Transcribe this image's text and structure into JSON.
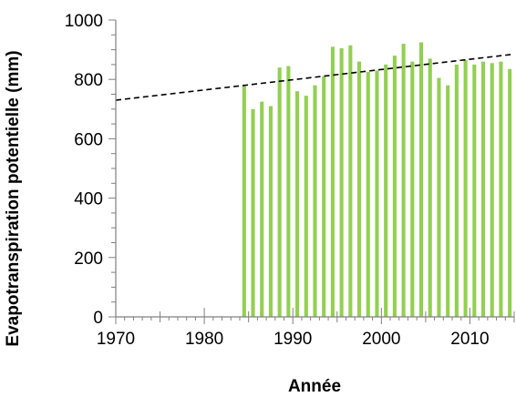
{
  "chart_data": {
    "type": "bar",
    "title": "",
    "xlabel": "Année",
    "ylabel": "Evapotranspiration potentielle (mm)",
    "xlim": [
      1970,
      2015
    ],
    "ylim": [
      0,
      1000
    ],
    "x_ticks": [
      "1970",
      "1980",
      "1990",
      "2000",
      "2010"
    ],
    "y_ticks": [
      "0",
      "200",
      "400",
      "600",
      "800",
      "1000"
    ],
    "bar_color": "#92d050",
    "trend_color": "#000000",
    "grid": false,
    "legend": "none",
    "x": [
      1985,
      1986,
      1987,
      1988,
      1989,
      1990,
      1991,
      1992,
      1993,
      1994,
      1995,
      1996,
      1997,
      1998,
      1999,
      2000,
      2001,
      2002,
      2003,
      2004,
      2005,
      2006,
      2007,
      2008,
      2009,
      2010,
      2011,
      2012,
      2013,
      2014,
      2015
    ],
    "values": [
      780,
      700,
      725,
      710,
      840,
      845,
      760,
      745,
      780,
      810,
      910,
      905,
      915,
      860,
      825,
      830,
      850,
      880,
      920,
      860,
      925,
      870,
      805,
      780,
      850,
      865,
      850,
      860,
      855,
      860,
      835
    ],
    "trendline": {
      "style": "dashed",
      "from": [
        1970,
        730
      ],
      "to": [
        2015,
        885
      ]
    }
  }
}
